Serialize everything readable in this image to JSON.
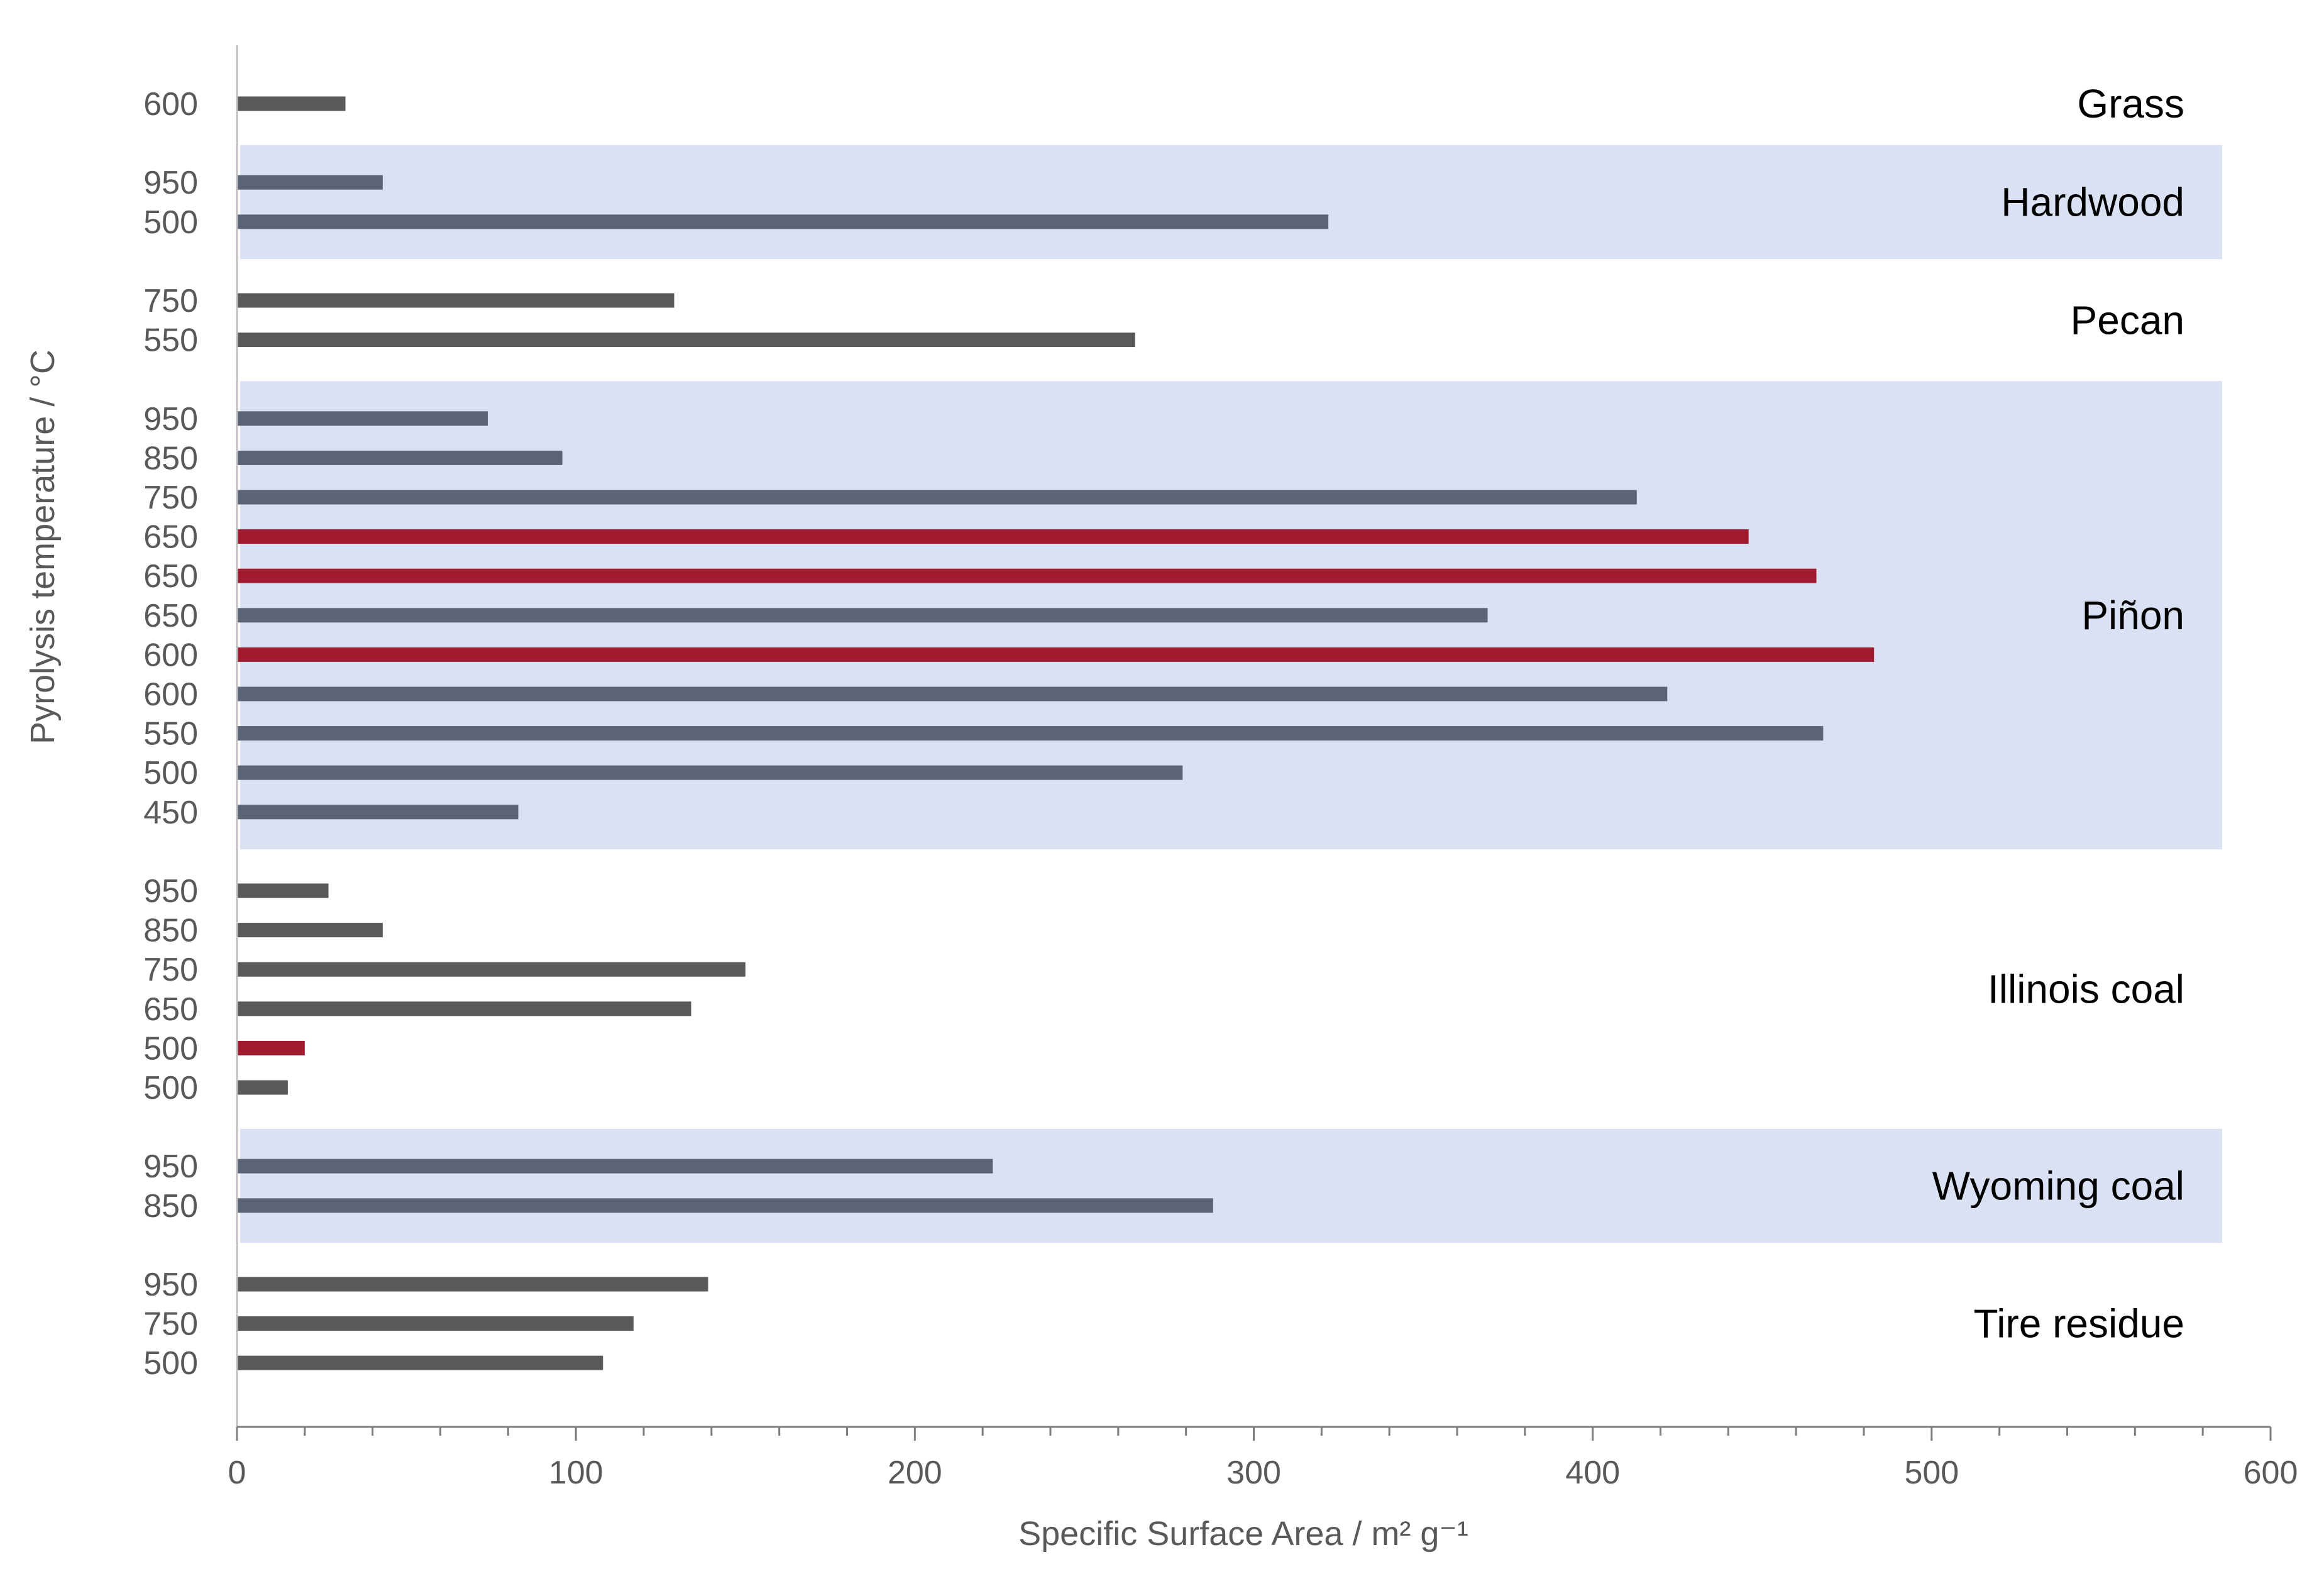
{
  "chart_data": {
    "type": "bar",
    "orientation": "horizontal",
    "xlabel": "Specific Surface Area / m² g⁻¹",
    "ylabel": "Pyrolysis temperature / °C",
    "xlim": [
      0,
      600
    ],
    "x_ticks": [
      "0",
      "100",
      "200",
      "300",
      "400",
      "500",
      "600"
    ],
    "grid": false,
    "colors": {
      "default": "#595959",
      "shaded_group": "#5a6475",
      "highlight": "#a01a30",
      "band": "#d9e1f2",
      "axis": "#bfbfbf"
    },
    "groups": [
      {
        "name": "Grass",
        "shaded": false,
        "bars": [
          {
            "temp": "600",
            "value": 32,
            "highlight": false
          }
        ]
      },
      {
        "name": "Hardwood",
        "shaded": true,
        "bars": [
          {
            "temp": "950",
            "value": 43,
            "highlight": false
          },
          {
            "temp": "500",
            "value": 322,
            "highlight": false
          }
        ]
      },
      {
        "name": "Pecan",
        "shaded": false,
        "bars": [
          {
            "temp": "750",
            "value": 129,
            "highlight": false
          },
          {
            "temp": "550",
            "value": 265,
            "highlight": false
          }
        ]
      },
      {
        "name": "Piñon",
        "shaded": true,
        "bars": [
          {
            "temp": "950",
            "value": 74,
            "highlight": false
          },
          {
            "temp": "850",
            "value": 96,
            "highlight": false
          },
          {
            "temp": "750",
            "value": 413,
            "highlight": false
          },
          {
            "temp": "650",
            "value": 446,
            "highlight": true
          },
          {
            "temp": "650",
            "value": 466,
            "highlight": true
          },
          {
            "temp": "650",
            "value": 369,
            "highlight": false
          },
          {
            "temp": "600",
            "value": 483,
            "highlight": true
          },
          {
            "temp": "600",
            "value": 422,
            "highlight": false
          },
          {
            "temp": "550",
            "value": 468,
            "highlight": false
          },
          {
            "temp": "500",
            "value": 279,
            "highlight": false
          },
          {
            "temp": "450",
            "value": 83,
            "highlight": false
          }
        ]
      },
      {
        "name": "Illinois coal",
        "shaded": false,
        "bars": [
          {
            "temp": "950",
            "value": 27,
            "highlight": false
          },
          {
            "temp": "850",
            "value": 43,
            "highlight": false
          },
          {
            "temp": "750",
            "value": 150,
            "highlight": false
          },
          {
            "temp": "650",
            "value": 134,
            "highlight": false
          },
          {
            "temp": "500",
            "value": 20,
            "highlight": true
          },
          {
            "temp": "500",
            "value": 15,
            "highlight": false
          }
        ]
      },
      {
        "name": "Wyoming coal",
        "shaded": true,
        "bars": [
          {
            "temp": "950",
            "value": 223,
            "highlight": false
          },
          {
            "temp": "850",
            "value": 288,
            "highlight": false
          }
        ]
      },
      {
        "name": "Tire residue",
        "shaded": false,
        "bars": [
          {
            "temp": "950",
            "value": 139,
            "highlight": false
          },
          {
            "temp": "750",
            "value": 117,
            "highlight": false
          },
          {
            "temp": "500",
            "value": 108,
            "highlight": false
          }
        ]
      }
    ]
  }
}
